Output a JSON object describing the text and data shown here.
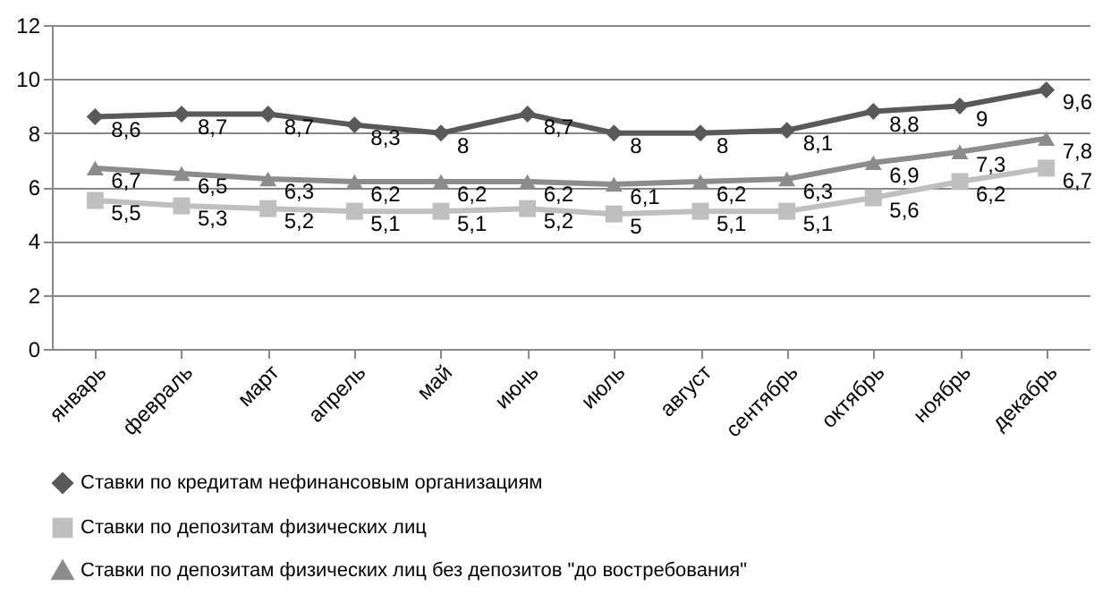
{
  "chart_data": {
    "type": "line",
    "categories": [
      "январь",
      "февраль",
      "март",
      "апрель",
      "май",
      "июнь",
      "июль",
      "август",
      "сентябрь",
      "октябрь",
      "ноябрь",
      "декабрь"
    ],
    "series": [
      {
        "name": "Ставки по кредитам нефинансовым организациям",
        "color": "#595959",
        "marker": "diamond",
        "values": [
          8.6,
          8.7,
          8.7,
          8.3,
          8,
          8.7,
          8,
          8,
          8.1,
          8.8,
          9,
          9.6
        ],
        "value_labels": [
          "8,6",
          "8,7",
          "8,7",
          "8,3",
          "8",
          "8,7",
          "8",
          "8",
          "8,1",
          "8,8",
          "9",
          "9,6"
        ]
      },
      {
        "name": "Ставки по депозитам физических лиц",
        "color": "#bfbfbf",
        "marker": "square",
        "values": [
          5.5,
          5.3,
          5.2,
          5.1,
          5.1,
          5.2,
          5,
          5.1,
          5.1,
          5.6,
          6.2,
          6.7
        ],
        "value_labels": [
          "5,5",
          "5,3",
          "5,2",
          "5,1",
          "5,1",
          "5,2",
          "5",
          "5,1",
          "5,1",
          "5,6",
          "6,2",
          "6,7"
        ]
      },
      {
        "name": "Ставки по депозитам физических лиц без депозитов \"до востребования\"",
        "color": "#8c8c8c",
        "marker": "triangle",
        "values": [
          6.7,
          6.5,
          6.3,
          6.2,
          6.2,
          6.2,
          6.1,
          6.2,
          6.3,
          6.9,
          7.3,
          7.8
        ],
        "value_labels": [
          "6,7",
          "6,5",
          "6,3",
          "6,2",
          "6,2",
          "6,2",
          "6,1",
          "6,2",
          "6,3",
          "6,9",
          "7,3",
          "7,8"
        ]
      }
    ],
    "ylim": [
      0,
      12
    ],
    "yticks": [
      0,
      2,
      4,
      6,
      8,
      10,
      12
    ],
    "grid": "y",
    "legend": "bottom"
  }
}
